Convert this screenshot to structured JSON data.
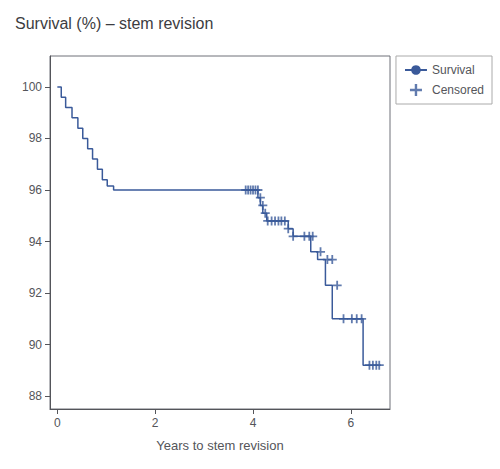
{
  "chart_data": {
    "type": "line",
    "title": "Survival (%) – stem revision",
    "xlabel": "Years to stem revision",
    "xlim": [
      -0.15,
      6.8
    ],
    "ylim": [
      87.5,
      101.2
    ],
    "xticks": [
      0,
      2,
      4,
      6
    ],
    "yticks": [
      88,
      90,
      92,
      94,
      96,
      98,
      100
    ],
    "grid": false,
    "legend": "upper right",
    "series": [
      {
        "name": "Survival",
        "type": "step",
        "color": "#3a5a9a",
        "x": [
          0.0,
          0.08,
          0.17,
          0.3,
          0.42,
          0.52,
          0.62,
          0.72,
          0.82,
          0.92,
          1.02,
          1.15,
          1.28,
          1.42,
          1.58,
          1.72,
          1.85,
          2.05,
          2.2,
          2.35,
          2.5,
          2.65,
          3.85,
          4.0,
          4.1,
          4.15,
          4.2,
          4.28,
          4.38,
          4.48,
          4.55,
          4.62,
          4.72,
          4.82,
          4.92,
          5.05,
          5.18,
          5.32,
          5.48,
          5.62,
          5.82,
          6.0,
          6.1,
          6.25,
          6.4
        ],
        "values": [
          100,
          99.6,
          99.2,
          98.8,
          98.4,
          98.0,
          97.6,
          97.2,
          96.8,
          96.4,
          96.15,
          96.0,
          96.0,
          96.0,
          96.0,
          96.0,
          96.0,
          96.0,
          96.0,
          96.0,
          96.0,
          96.0,
          96.0,
          96.0,
          95.7,
          95.4,
          95.1,
          94.8,
          94.8,
          94.8,
          94.8,
          94.8,
          94.5,
          94.2,
          94.2,
          94.2,
          93.6,
          93.3,
          92.3,
          91.0,
          91.0,
          91.0,
          91.0,
          89.2,
          89.2
        ]
      },
      {
        "name": "Censored",
        "type": "scatter",
        "marker": "+",
        "color": "#3a5a9a",
        "x": [
          3.85,
          3.9,
          3.95,
          4.0,
          4.05,
          4.1,
          4.15,
          4.2,
          4.25,
          4.3,
          4.38,
          4.45,
          4.52,
          4.58,
          4.65,
          4.72,
          4.82,
          5.05,
          5.15,
          5.22,
          5.38,
          5.52,
          5.62,
          5.72,
          5.85,
          6.02,
          6.12,
          6.22,
          6.38,
          6.45,
          6.52,
          6.58
        ],
        "values": [
          96.0,
          96.0,
          96.0,
          96.0,
          96.0,
          96.0,
          95.7,
          95.4,
          95.1,
          94.8,
          94.8,
          94.8,
          94.8,
          94.8,
          94.8,
          94.5,
          94.2,
          94.2,
          94.2,
          94.2,
          93.6,
          93.3,
          93.3,
          92.3,
          91.0,
          91.0,
          91.0,
          91.0,
          89.2,
          89.2,
          89.2,
          89.2
        ]
      }
    ]
  }
}
